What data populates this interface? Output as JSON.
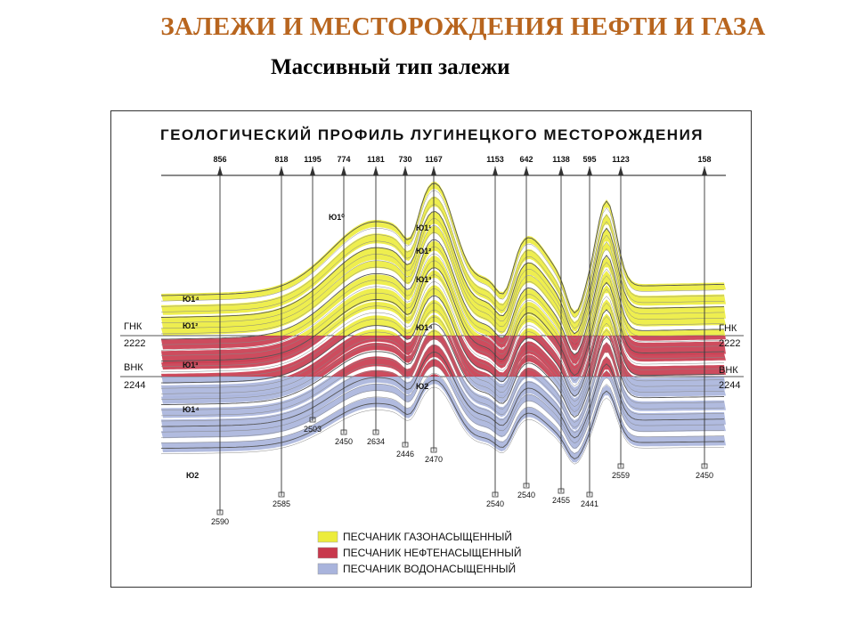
{
  "slide": {
    "title": "ЗАЛЕЖИ И МЕСТОРОЖДЕНИЯ НЕФТИ И ГАЗА",
    "subtitle": "Массивный  тип залежи"
  },
  "figure": {
    "heading": "ГЕОЛОГИЧЕСКИЙ ПРОФИЛЬ ЛУГИНЕЦКОГО МЕСТОРОЖДЕНИЯ",
    "wells": [
      {
        "name": "856",
        "depth": "2590"
      },
      {
        "name": "818",
        "depth": "2585"
      },
      {
        "name": "1195",
        "depth": "2503"
      },
      {
        "name": "774",
        "depth": "2450"
      },
      {
        "name": "1181",
        "depth": "2634"
      },
      {
        "name": "730",
        "depth": "2446"
      },
      {
        "name": "1167",
        "depth": "2470"
      },
      {
        "name": "1153",
        "depth": "2540"
      },
      {
        "name": "642",
        "depth": "2540"
      },
      {
        "name": "1138",
        "depth": "2455"
      },
      {
        "name": "595",
        "depth": "2441"
      },
      {
        "name": "1123",
        "depth": "2559"
      },
      {
        "name": "158",
        "depth": "2450"
      }
    ],
    "contacts": {
      "gas_oil_label": "ГНК",
      "gas_oil_depth": "2222",
      "oil_water_label": "ВНК",
      "oil_water_depth": "2244"
    },
    "layer_labels": [
      "Ю1⁰",
      "Ю1¹",
      "Ю1²",
      "Ю1³",
      "Ю1⁴",
      "Ю1⁴",
      "Ю1²",
      "Ю1³",
      "Ю1⁴",
      "Ю2",
      "Ю2"
    ],
    "legend": [
      {
        "label": "ПЕСЧАНИК ГАЗОНАСЫЩЕННЫЙ",
        "color": "#ecec3c"
      },
      {
        "label": "ПЕСЧАНИК НЕФТЕНАСЫЩЕННЫЙ",
        "color": "#c8384c"
      },
      {
        "label": "ПЕСЧАНИК ВОДОНАСЫЩЕННЫЙ",
        "color": "#a9b4dc"
      }
    ]
  },
  "colors": {
    "title": "#b8651e",
    "gas": "#ecec3c",
    "oil": "#c8384c",
    "water": "#a9b4dc"
  }
}
